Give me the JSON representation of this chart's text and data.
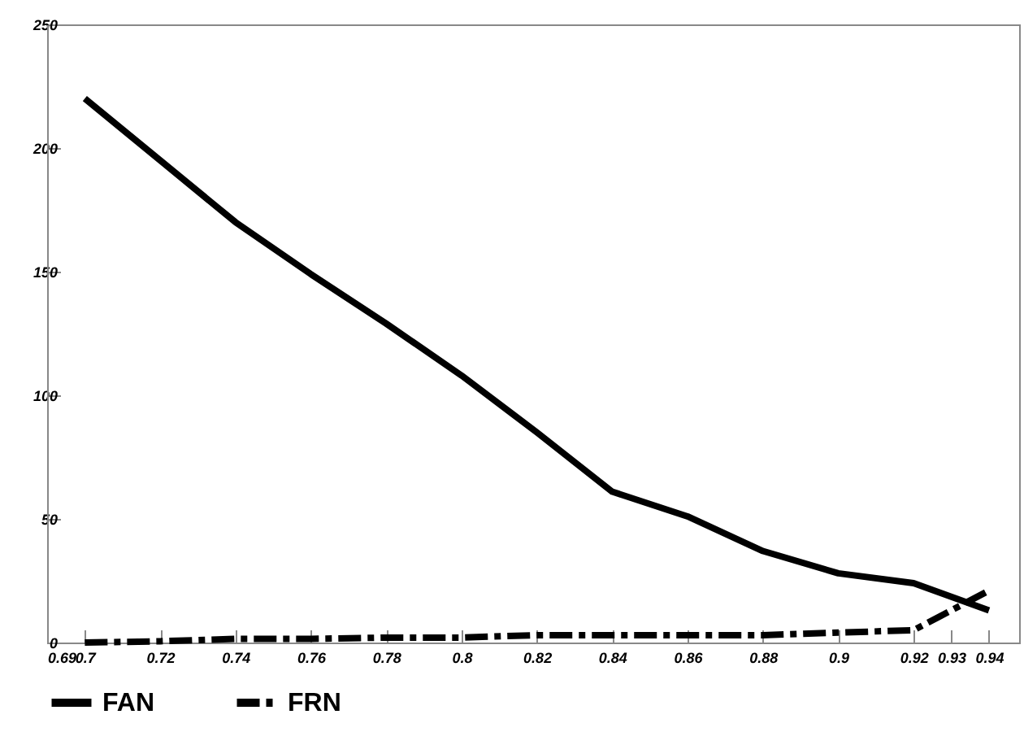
{
  "chart_data": {
    "type": "line",
    "x": [
      0.7,
      0.72,
      0.74,
      0.76,
      0.78,
      0.8,
      0.82,
      0.84,
      0.86,
      0.88,
      0.9,
      0.92,
      0.94
    ],
    "series": [
      {
        "name": "FAN",
        "color": "#000000",
        "line_style": "solid",
        "values": [
          220,
          195,
          170,
          149,
          129,
          108,
          85,
          61,
          51,
          37,
          28,
          24,
          13
        ]
      },
      {
        "name": "FRN",
        "color": "#000000",
        "line_style": "dashed",
        "x": [
          0.7,
          0.72,
          0.74,
          0.76,
          0.78,
          0.8,
          0.82,
          0.84,
          0.86,
          0.88,
          0.9,
          0.92,
          0.93,
          0.94
        ],
        "values": [
          0,
          0.5,
          1.5,
          1.5,
          2,
          2,
          3,
          3,
          3,
          3,
          4,
          5,
          13,
          21
        ]
      }
    ],
    "xlim": [
      0.69,
      0.948
    ],
    "xticks": [
      0.69,
      0.7,
      0.72,
      0.74,
      0.76,
      0.78,
      0.8,
      0.82,
      0.84,
      0.86,
      0.88,
      0.9,
      0.92,
      0.93,
      0.94
    ],
    "ylim": [
      0,
      250
    ],
    "yticks": [
      0,
      50,
      100,
      150,
      200,
      250
    ],
    "grid": false,
    "legend": "bottom left",
    "marker": "none"
  }
}
